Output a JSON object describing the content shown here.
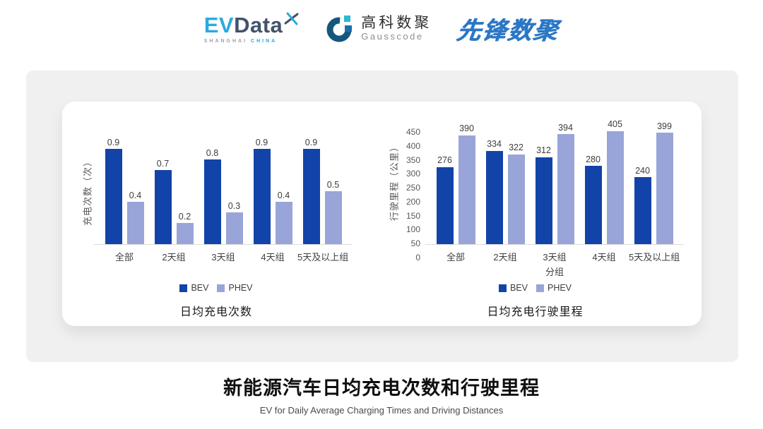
{
  "header": {
    "evdata_logo": {
      "ev": "EV",
      "data": "Data",
      "sub_left": "SHANGHAI",
      "sub_right": "CHINA"
    },
    "gausscode_logo": {
      "cn": "高科数聚",
      "en": "Gausscode"
    },
    "pioneer_logo": {
      "text": "先锋数聚"
    }
  },
  "colors": {
    "bev": "#1243A8",
    "phev": "#99A5D8",
    "panel_bg": "#F0F0F0",
    "card_bg": "#FFFFFF",
    "evdata_blue": "#2AA9E0",
    "evdata_dark": "#43536A",
    "pioneer_blue": "#2B77C5"
  },
  "chart_data": [
    {
      "type": "bar",
      "title": "日均充电次数",
      "categories": [
        "全部",
        "2天组",
        "3天组",
        "4天组",
        "5天及以上组"
      ],
      "series": [
        {
          "name": "BEV",
          "color": "#1243A8",
          "values": [
            0.9,
            0.7,
            0.8,
            0.9,
            0.9
          ]
        },
        {
          "name": "PHEV",
          "color": "#99A5D8",
          "values": [
            0.4,
            0.2,
            0.3,
            0.4,
            0.5
          ]
        }
      ],
      "xlabel": "",
      "ylabel": "充电次数（次）",
      "ylim": [
        0,
        1.0
      ],
      "yticks": [],
      "grid": false,
      "data_labels": true,
      "legend_position": "bottom"
    },
    {
      "type": "bar",
      "title": "日均充电行驶里程",
      "categories": [
        "全部",
        "2天组",
        "3天组",
        "4天组",
        "5天及以上组"
      ],
      "series": [
        {
          "name": "BEV",
          "color": "#1243A8",
          "values": [
            276,
            334,
            312,
            280,
            240
          ]
        },
        {
          "name": "PHEV",
          "color": "#99A5D8",
          "values": [
            390,
            322,
            394,
            405,
            399
          ]
        }
      ],
      "xlabel": "分组",
      "ylabel": "行驶里程（公里）",
      "ylim": [
        0,
        450
      ],
      "yticks": [
        0,
        50,
        100,
        150,
        200,
        250,
        300,
        350,
        400,
        450
      ],
      "grid": false,
      "data_labels": true,
      "legend_position": "bottom"
    }
  ],
  "footer": {
    "title": "新能源汽车日均充电次数和行驶里程",
    "subtitle": "EV for Daily Average Charging Times and Driving Distances"
  }
}
